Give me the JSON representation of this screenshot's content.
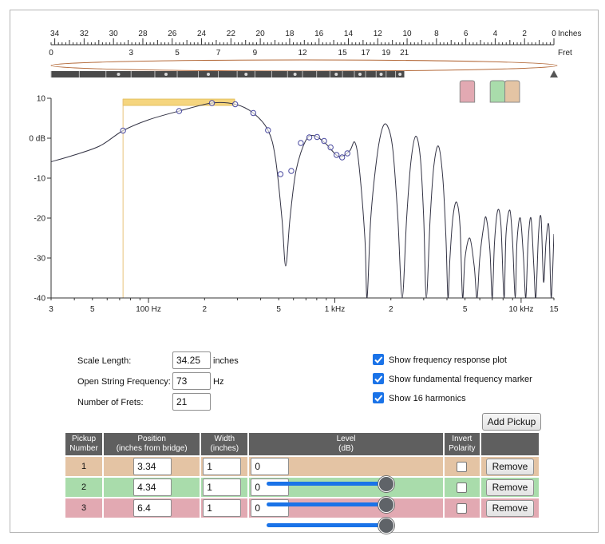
{
  "ruler": {
    "unit_label": "Inches",
    "fret_label": "Fret",
    "inch_ticks": [
      "34",
      "32",
      "30",
      "28",
      "26",
      "24",
      "22",
      "20",
      "18",
      "16",
      "14",
      "12",
      "10",
      "8",
      "6",
      "4",
      "2",
      "0"
    ],
    "fret_ticks": [
      "0",
      "3",
      "5",
      "7",
      "9",
      "12",
      "15",
      "17",
      "19",
      "21"
    ]
  },
  "pickup_markers": [
    {
      "color": "#e2a9b2",
      "icon": "pickup-marker-icon"
    },
    {
      "color": "#a9dcab",
      "icon": "pickup-marker-icon"
    },
    {
      "color": "#e4c4a4",
      "icon": "pickup-marker-icon"
    }
  ],
  "chart_data": {
    "type": "line",
    "title": "",
    "xlabel": "",
    "ylabel": "",
    "x_scale": "log",
    "xlim": [
      30,
      15000
    ],
    "ylim": [
      -40,
      10
    ],
    "y_tick_labels": [
      "10",
      "0 dB",
      "-10",
      "-20",
      "-30",
      "-40"
    ],
    "x_tick_labels": [
      "3",
      "5",
      "100 Hz",
      "2",
      "5",
      "1 kHz",
      "2",
      "5",
      "10 kHz",
      "15"
    ],
    "grid": false,
    "fundamental_marker": {
      "frequency": 73,
      "band_level": 9
    },
    "harmonics": [
      {
        "n": 1,
        "freq": 73,
        "db": 1.9
      },
      {
        "n": 2,
        "freq": 146,
        "db": 6.8
      },
      {
        "n": 3,
        "freq": 219,
        "db": 8.8
      },
      {
        "n": 4,
        "freq": 292,
        "db": 8.5
      },
      {
        "n": 5,
        "freq": 365,
        "db": 6.3
      },
      {
        "n": 6,
        "freq": 438,
        "db": 2.0
      },
      {
        "n": 7,
        "freq": 511,
        "db": -9.0
      },
      {
        "n": 8,
        "freq": 584,
        "db": -8.2
      },
      {
        "n": 9,
        "freq": 657,
        "db": -1.2
      },
      {
        "n": 10,
        "freq": 730,
        "db": 0.2
      },
      {
        "n": 11,
        "freq": 803,
        "db": 0.3
      },
      {
        "n": 12,
        "freq": 876,
        "db": -0.7
      },
      {
        "n": 13,
        "freq": 949,
        "db": -2.3
      },
      {
        "n": 14,
        "freq": 1022,
        "db": -4.2
      },
      {
        "n": 15,
        "freq": 1095,
        "db": -4.8
      },
      {
        "n": 16,
        "freq": 1168,
        "db": -3.8
      }
    ],
    "series": [
      {
        "values": [
          [
            30,
            -5.9
          ],
          [
            40,
            -4.2
          ],
          [
            55,
            -1.9
          ],
          [
            73,
            1.9
          ],
          [
            100,
            4.6
          ],
          [
            146,
            6.8
          ],
          [
            219,
            8.8
          ],
          [
            292,
            8.5
          ],
          [
            365,
            6.3
          ],
          [
            438,
            2.0
          ],
          [
            480,
            -5
          ],
          [
            520,
            -20
          ],
          [
            545,
            -32
          ],
          [
            575,
            -20
          ],
          [
            620,
            -8
          ],
          [
            700,
            -0.5
          ],
          [
            780,
            0.6
          ],
          [
            900,
            -1.5
          ],
          [
            1050,
            -4.6
          ],
          [
            1200,
            -3.2
          ],
          [
            1280,
            -1
          ],
          [
            1350,
            -7
          ],
          [
            1450,
            -25
          ],
          [
            1490,
            -40
          ],
          [
            1560,
            -20
          ],
          [
            1680,
            -5
          ],
          [
            1800,
            2.5
          ],
          [
            1920,
            3.0
          ],
          [
            2050,
            -3
          ],
          [
            2180,
            -20
          ],
          [
            2300,
            -40
          ],
          [
            2430,
            -20
          ],
          [
            2560,
            -6
          ],
          [
            2720,
            0.5
          ],
          [
            2880,
            -5
          ],
          [
            3000,
            -20
          ],
          [
            3100,
            -40
          ],
          [
            3250,
            -20
          ],
          [
            3400,
            -7
          ],
          [
            3600,
            -2
          ],
          [
            3800,
            -10
          ],
          [
            3950,
            -25
          ],
          [
            4050,
            -40
          ],
          [
            4150,
            -30
          ],
          [
            4300,
            -20
          ],
          [
            4500,
            -16
          ],
          [
            4700,
            -22
          ],
          [
            4850,
            -40
          ],
          [
            5000,
            -30
          ],
          [
            5300,
            -25
          ],
          [
            5600,
            -32
          ],
          [
            5800,
            -40
          ],
          [
            6000,
            -30
          ],
          [
            6300,
            -22
          ],
          [
            6500,
            -20
          ],
          [
            6800,
            -28
          ],
          [
            7000,
            -40
          ],
          [
            7200,
            -26
          ],
          [
            7500,
            -18
          ],
          [
            7800,
            -22
          ],
          [
            8100,
            -40
          ],
          [
            8300,
            -24
          ],
          [
            8700,
            -18
          ],
          [
            9000,
            -26
          ],
          [
            9300,
            -40
          ],
          [
            9500,
            -26
          ],
          [
            9900,
            -20
          ],
          [
            10300,
            -30
          ],
          [
            10600,
            -40
          ],
          [
            10900,
            -26
          ],
          [
            11300,
            -20
          ],
          [
            11700,
            -32
          ],
          [
            12000,
            -40
          ],
          [
            12400,
            -24
          ],
          [
            12800,
            -20
          ],
          [
            13200,
            -36
          ],
          [
            13600,
            -26
          ],
          [
            14100,
            -22
          ],
          [
            14500,
            -40
          ],
          [
            15000,
            -24
          ]
        ]
      }
    ]
  },
  "settings": {
    "scale_length_label": "Scale Length:",
    "scale_length_value": "34.25",
    "scale_length_unit": "inches",
    "open_freq_label": "Open String Frequency:",
    "open_freq_value": "73",
    "open_freq_unit": "Hz",
    "num_frets_label": "Number of Frets:",
    "num_frets_value": "21",
    "show_freq_plot_label": "Show frequency response plot",
    "show_fund_marker_label": "Show fundamental frequency marker",
    "show_harmonics_label": "Show 16 harmonics",
    "show_freq_plot_checked": true,
    "show_fund_marker_checked": true,
    "show_harmonics_checked": true
  },
  "actions": {
    "add_pickup_label": "Add Pickup"
  },
  "table": {
    "headers": {
      "number_line1": "Pickup",
      "number_line2": "Number",
      "position_line1": "Position",
      "position_line2": "(inches from bridge)",
      "width_line1": "Width",
      "width_line2": "(inches)",
      "level_line1": "Level",
      "level_line2": "(dB)",
      "invert_line1": "Invert",
      "invert_line2": "Polarity"
    },
    "rows": [
      {
        "number": "1",
        "position": "3.34",
        "width": "1",
        "level": "0",
        "color": "#e4c4a4",
        "invert_checked": false,
        "remove_label": "Remove"
      },
      {
        "number": "2",
        "position": "4.34",
        "width": "1",
        "level": "0",
        "color": "#a9dcab",
        "invert_checked": false,
        "remove_label": "Remove"
      },
      {
        "number": "3",
        "position": "6.4",
        "width": "1",
        "level": "0",
        "color": "#e2a9b2",
        "invert_checked": false,
        "remove_label": "Remove"
      }
    ],
    "level_sliders": [
      {
        "row": 1,
        "value_db": 0,
        "fraction": 1.0
      },
      {
        "row": 2,
        "value_db": 0,
        "fraction": 1.0
      },
      {
        "row": 3,
        "value_db": 0,
        "fraction": 1.0
      }
    ]
  },
  "colors": {
    "curve": "#333344",
    "harmonic_marker": "#4a4aa0",
    "fundamental_band": "#f5d57f",
    "fundamental_line": "#e8c27a",
    "string_outline": "#b46a3a",
    "fretboard": "#4a4a4a",
    "accent": "#1a73e8"
  }
}
